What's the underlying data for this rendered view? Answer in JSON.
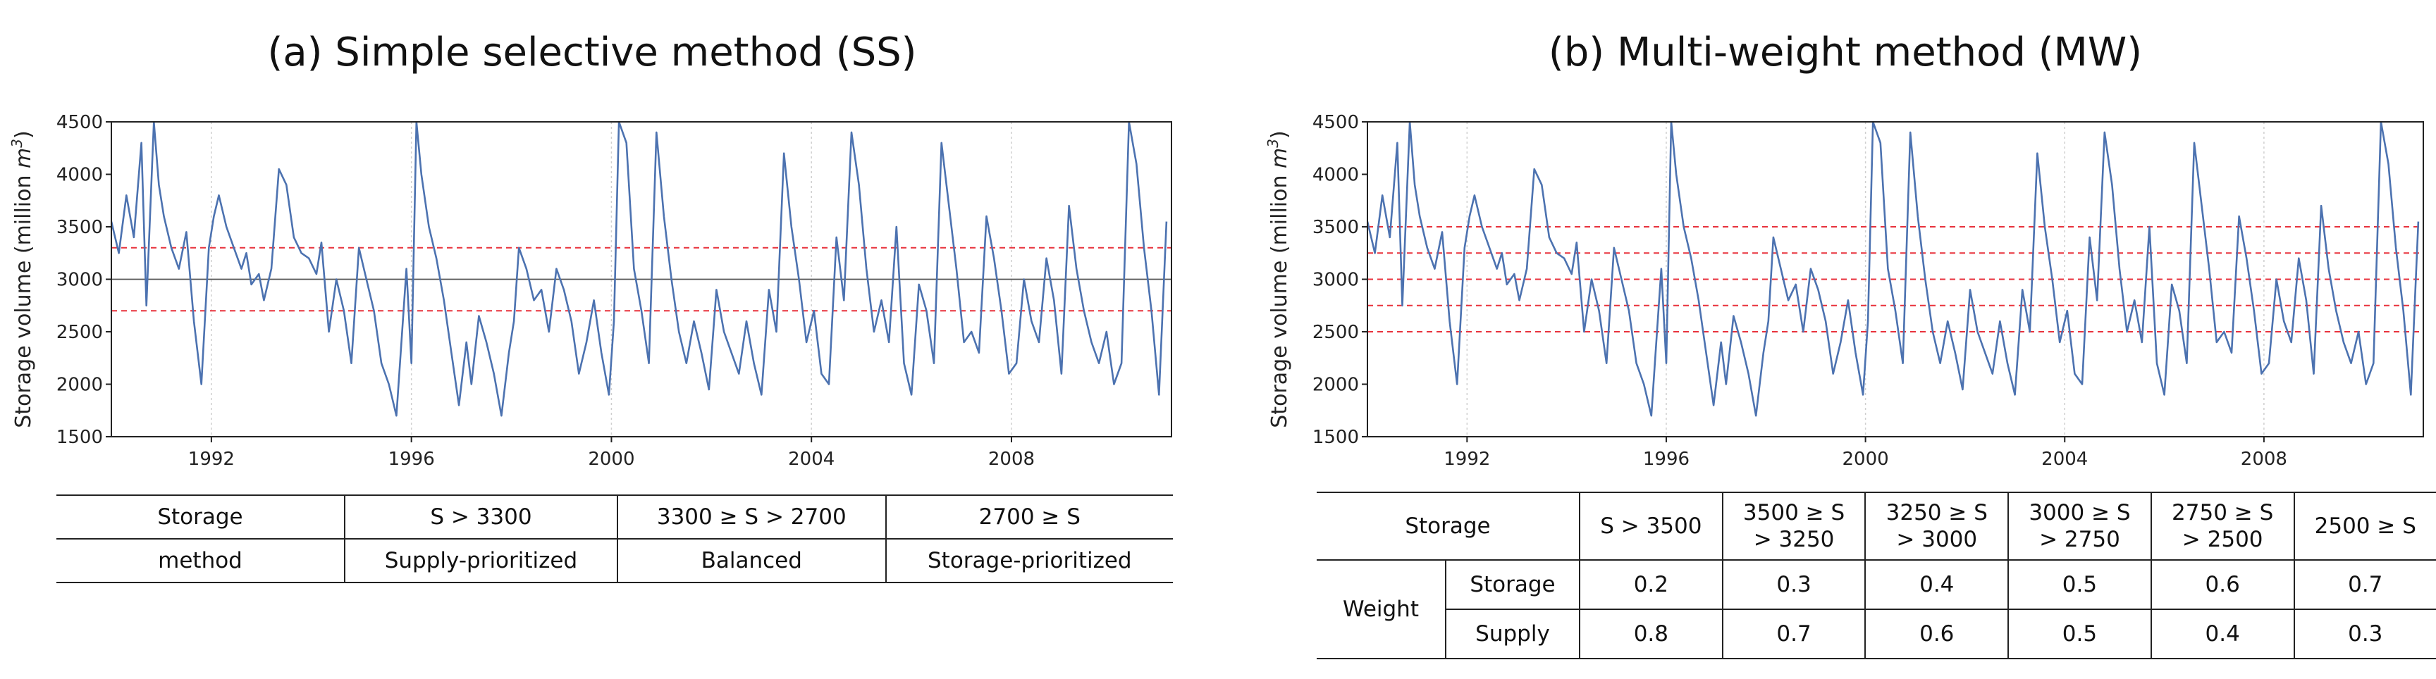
{
  "panels": {
    "a": {
      "title": "(a) Simple selective method (SS)"
    },
    "b": {
      "title": "(b) Multi-weight method (MW)"
    }
  },
  "chart_data": [
    {
      "type": "line",
      "title": "(a) Simple selective method (SS)",
      "ylabel": "Storage volume (million m3)",
      "ylabel_main": "Storage volume (million ",
      "ylabel_unit": "m",
      "ylabel_exp": "3",
      "ylabel_close": ")",
      "xlim": [
        1990.0,
        2011.2
      ],
      "ylim": [
        1500,
        4500
      ],
      "yticks": [
        1500,
        2000,
        2500,
        3000,
        3500,
        4000,
        4500
      ],
      "xticks": [
        1992,
        1996,
        2000,
        2004,
        2008
      ],
      "grid": "vertical dotted",
      "threshold_lines": [
        {
          "y": 3300,
          "style": "red dashed"
        },
        {
          "y": 3000,
          "style": "gray solid"
        },
        {
          "y": 2700,
          "style": "red dashed"
        }
      ],
      "line_color": "#4c72b0",
      "series": [
        {
          "x": [
            1990.0,
            1990.15,
            1990.3,
            1990.45,
            1990.6,
            1990.7,
            1990.85,
            1990.95,
            1991.05,
            1991.2,
            1991.35,
            1991.5,
            1991.65,
            1991.8,
            1991.95,
            1992.05,
            1992.15,
            1992.3,
            1992.45,
            1992.6,
            1992.7,
            1992.8,
            1992.95,
            1993.05,
            1993.2,
            1993.35,
            1993.5,
            1993.65,
            1993.8,
            1993.95,
            1994.1,
            1994.2,
            1994.35,
            1994.5,
            1994.65,
            1994.8,
            1994.95,
            1995.1,
            1995.25,
            1995.4,
            1995.55,
            1995.7,
            1995.8,
            1995.9,
            1996.0,
            1996.1,
            1996.2,
            1996.35,
            1996.5,
            1996.65,
            1996.8,
            1996.95,
            1997.1,
            1997.2,
            1997.35,
            1997.5,
            1997.65,
            1997.8,
            1997.95,
            1998.05,
            1998.15,
            1998.3,
            1998.45,
            1998.6,
            1998.75,
            1998.9,
            1999.05,
            1999.2,
            1999.35,
            1999.5,
            1999.65,
            1999.8,
            1999.95,
            2000.05,
            2000.15,
            2000.3,
            2000.45,
            2000.6,
            2000.75,
            2000.9,
            2001.05,
            2001.2,
            2001.35,
            2001.5,
            2001.65,
            2001.8,
            2001.95,
            2002.1,
            2002.25,
            2002.4,
            2002.55,
            2002.7,
            2002.85,
            2003.0,
            2003.15,
            2003.3,
            2003.45,
            2003.6,
            2003.75,
            2003.9,
            2004.05,
            2004.2,
            2004.35,
            2004.5,
            2004.65,
            2004.8,
            2004.95,
            2005.1,
            2005.25,
            2005.4,
            2005.55,
            2005.7,
            2005.85,
            2006.0,
            2006.15,
            2006.3,
            2006.45,
            2006.6,
            2006.75,
            2006.9,
            2007.05,
            2007.2,
            2007.35,
            2007.5,
            2007.65,
            2007.8,
            2007.95,
            2008.1,
            2008.25,
            2008.4,
            2008.55,
            2008.7,
            2008.85,
            2009.0,
            2009.15,
            2009.3,
            2009.45,
            2009.6,
            2009.75,
            2009.9,
            2010.05,
            2010.2,
            2010.35,
            2010.5,
            2010.65,
            2010.8,
            2010.95,
            2011.1
          ],
          "y": [
            3550,
            3250,
            3800,
            3400,
            4300,
            2750,
            4500,
            3900,
            3600,
            3300,
            3100,
            3450,
            2600,
            2000,
            3300,
            3600,
            3800,
            3500,
            3300,
            3100,
            3250,
            2950,
            3050,
            2800,
            3100,
            4050,
            3900,
            3400,
            3250,
            3200,
            3050,
            3350,
            2500,
            3000,
            2700,
            2200,
            3300,
            3000,
            2700,
            2200,
            2000,
            1700,
            2400,
            3100,
            2200,
            4500,
            4000,
            3500,
            3200,
            2800,
            2300,
            1800,
            2400,
            2000,
            2650,
            2400,
            2100,
            1700,
            2300,
            2600,
            3300,
            3100,
            2800,
            2900,
            2500,
            3100,
            2900,
            2600,
            2100,
            2400,
            2800,
            2300,
            1900,
            2600,
            4500,
            4300,
            3100,
            2700,
            2200,
            4400,
            3600,
            3000,
            2500,
            2200,
            2600,
            2300,
            1950,
            2900,
            2500,
            2300,
            2100,
            2600,
            2200,
            1900,
            2900,
            2500,
            4200,
            3500,
            3000,
            2400,
            2700,
            2100,
            2000,
            3400,
            2800,
            4400,
            3900,
            3100,
            2500,
            2800,
            2400,
            3500,
            2200,
            1900,
            2950,
            2700,
            2200,
            4300,
            3700,
            3100,
            2400,
            2500,
            2300,
            3600,
            3200,
            2700,
            2100,
            2200,
            3000,
            2600,
            2400,
            3200,
            2800,
            2100,
            3700,
            3100,
            2700,
            2400,
            2200,
            2500,
            2000,
            2200,
            4500,
            4100,
            3300,
            2700,
            1900,
            3550
          ]
        }
      ]
    },
    {
      "type": "line",
      "title": "(b) Multi-weight method (MW)",
      "ylabel": "Storage volume (million m3)",
      "ylabel_main": "Storage volume (million ",
      "ylabel_unit": "m",
      "ylabel_exp": "3",
      "ylabel_close": ")",
      "xlim": [
        1990.0,
        2011.2
      ],
      "ylim": [
        1500,
        4500
      ],
      "yticks": [
        1500,
        2000,
        2500,
        3000,
        3500,
        4000,
        4500
      ],
      "xticks": [
        1992,
        1996,
        2000,
        2004,
        2008
      ],
      "grid": "vertical dotted",
      "threshold_lines": [
        {
          "y": 3500,
          "style": "red dashed"
        },
        {
          "y": 3250,
          "style": "red dashed"
        },
        {
          "y": 3000,
          "style": "red dashed"
        },
        {
          "y": 2750,
          "style": "red dashed"
        },
        {
          "y": 2500,
          "style": "red dashed"
        }
      ],
      "line_color": "#4c72b0",
      "series": [
        {
          "x": [
            1990.0,
            1990.15,
            1990.3,
            1990.45,
            1990.6,
            1990.7,
            1990.85,
            1990.95,
            1991.05,
            1991.2,
            1991.35,
            1991.5,
            1991.65,
            1991.8,
            1991.95,
            1992.05,
            1992.15,
            1992.3,
            1992.45,
            1992.6,
            1992.7,
            1992.8,
            1992.95,
            1993.05,
            1993.2,
            1993.35,
            1993.5,
            1993.65,
            1993.8,
            1993.95,
            1994.1,
            1994.2,
            1994.35,
            1994.5,
            1994.65,
            1994.8,
            1994.95,
            1995.1,
            1995.25,
            1995.4,
            1995.55,
            1995.7,
            1995.8,
            1995.9,
            1996.0,
            1996.1,
            1996.2,
            1996.35,
            1996.5,
            1996.65,
            1996.8,
            1996.95,
            1997.1,
            1997.2,
            1997.35,
            1997.5,
            1997.65,
            1997.8,
            1997.95,
            1998.05,
            1998.15,
            1998.3,
            1998.45,
            1998.6,
            1998.75,
            1998.9,
            1999.05,
            1999.2,
            1999.35,
            1999.5,
            1999.65,
            1999.8,
            1999.95,
            2000.05,
            2000.15,
            2000.3,
            2000.45,
            2000.6,
            2000.75,
            2000.9,
            2001.05,
            2001.2,
            2001.35,
            2001.5,
            2001.65,
            2001.8,
            2001.95,
            2002.1,
            2002.25,
            2002.4,
            2002.55,
            2002.7,
            2002.85,
            2003.0,
            2003.15,
            2003.3,
            2003.45,
            2003.6,
            2003.75,
            2003.9,
            2004.05,
            2004.2,
            2004.35,
            2004.5,
            2004.65,
            2004.8,
            2004.95,
            2005.1,
            2005.25,
            2005.4,
            2005.55,
            2005.7,
            2005.85,
            2006.0,
            2006.15,
            2006.3,
            2006.45,
            2006.6,
            2006.75,
            2006.9,
            2007.05,
            2007.2,
            2007.35,
            2007.5,
            2007.65,
            2007.8,
            2007.95,
            2008.1,
            2008.25,
            2008.4,
            2008.55,
            2008.7,
            2008.85,
            2009.0,
            2009.15,
            2009.3,
            2009.45,
            2009.6,
            2009.75,
            2009.9,
            2010.05,
            2010.2,
            2010.35,
            2010.5,
            2010.65,
            2010.8,
            2010.95,
            2011.1
          ],
          "y": [
            3550,
            3250,
            3800,
            3400,
            4300,
            2750,
            4500,
            3900,
            3600,
            3300,
            3100,
            3450,
            2600,
            2000,
            3300,
            3600,
            3800,
            3500,
            3300,
            3100,
            3250,
            2950,
            3050,
            2800,
            3100,
            4050,
            3900,
            3400,
            3250,
            3200,
            3050,
            3350,
            2500,
            3000,
            2700,
            2200,
            3300,
            3000,
            2700,
            2200,
            2000,
            1700,
            2400,
            3100,
            2200,
            4500,
            4000,
            3500,
            3200,
            2800,
            2300,
            1800,
            2400,
            2000,
            2650,
            2400,
            2100,
            1700,
            2300,
            2600,
            3400,
            3100,
            2800,
            2950,
            2500,
            3100,
            2900,
            2600,
            2100,
            2400,
            2800,
            2300,
            1900,
            2600,
            4500,
            4300,
            3100,
            2700,
            2200,
            4400,
            3600,
            3000,
            2500,
            2200,
            2600,
            2300,
            1950,
            2900,
            2500,
            2300,
            2100,
            2600,
            2200,
            1900,
            2900,
            2500,
            4200,
            3500,
            3000,
            2400,
            2700,
            2100,
            2000,
            3400,
            2800,
            4400,
            3900,
            3100,
            2500,
            2800,
            2400,
            3500,
            2200,
            1900,
            2950,
            2700,
            2200,
            4300,
            3700,
            3100,
            2400,
            2500,
            2300,
            3600,
            3200,
            2700,
            2100,
            2200,
            3000,
            2600,
            2400,
            3200,
            2800,
            2100,
            3700,
            3100,
            2700,
            2400,
            2200,
            2500,
            2000,
            2200,
            4500,
            4100,
            3300,
            2700,
            1900,
            3550
          ]
        }
      ]
    }
  ],
  "table_a": {
    "r1": [
      "Storage",
      "S > 3300",
      "3300 ≥ S > 2700",
      "2700 ≥ S"
    ],
    "r2": [
      "method",
      "Supply-prioritized",
      "Balanced",
      "Storage-prioritized"
    ]
  },
  "table_b": {
    "header_label": "Storage",
    "header": [
      [
        "S > 3500",
        ""
      ],
      [
        "3500 ≥ S",
        "> 3250"
      ],
      [
        "3250 ≥ S",
        "> 3000"
      ],
      [
        "3000 ≥ S",
        "> 2750"
      ],
      [
        "2750 ≥ S",
        "> 2500"
      ],
      [
        "2500 ≥ S",
        ""
      ]
    ],
    "weight_label": "Weight",
    "storage_label": "Storage",
    "supply_label": "Supply",
    "storage_weights": [
      "0.2",
      "0.3",
      "0.4",
      "0.5",
      "0.6",
      "0.7"
    ],
    "supply_weights": [
      "0.8",
      "0.7",
      "0.6",
      "0.5",
      "0.4",
      "0.3"
    ]
  }
}
